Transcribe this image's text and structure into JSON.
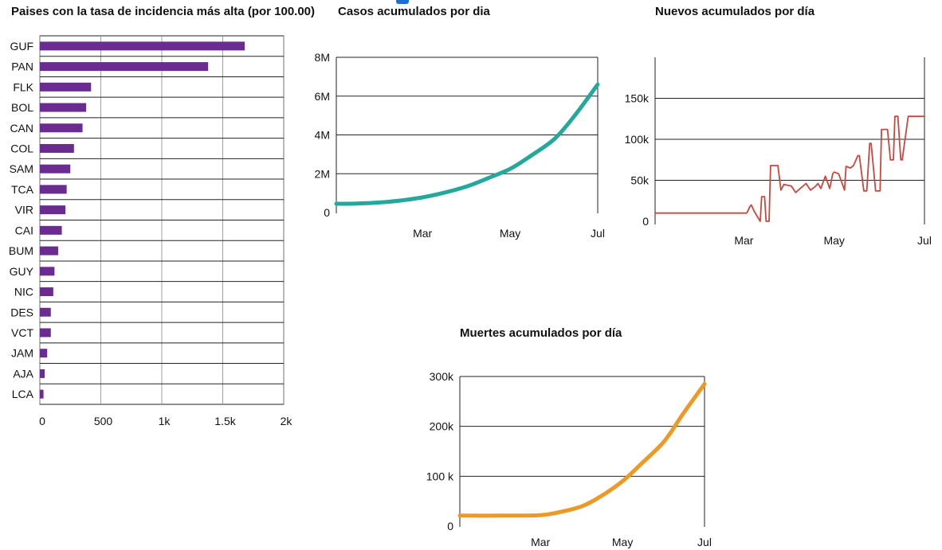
{
  "colors": {
    "bar": "#6b2c91",
    "cases_line": "#23a89b",
    "new_line": "#c9473f",
    "deaths_line": "#ec9a25",
    "grid": "#222222",
    "accent": "#1b6fd6"
  },
  "chart_data": [
    {
      "id": "incidence",
      "type": "bar",
      "orientation": "horizontal",
      "title": "Paises con la tasa de incidencia más alta (por 100.00)",
      "categories": [
        "GUF",
        "PAN",
        "FLK",
        "BOL",
        "CAN",
        "COL",
        "SAM",
        "TCA",
        "VIR",
        "CAI",
        "BUM",
        "GUY",
        "NIC",
        "DES",
        "VCT",
        "JAM",
        "AJA",
        "LCA"
      ],
      "values": [
        1680,
        1380,
        420,
        380,
        350,
        280,
        250,
        220,
        210,
        180,
        150,
        120,
        110,
        90,
        90,
        60,
        40,
        30
      ],
      "xlim": [
        0,
        2000
      ],
      "xticks": [
        {
          "value": 0,
          "label": "0"
        },
        {
          "value": 500,
          "label": "500"
        },
        {
          "value": 1000,
          "label": "1k"
        },
        {
          "value": 1500,
          "label": "1.5k"
        },
        {
          "value": 2000,
          "label": "2k"
        }
      ],
      "grid": "horizontal and vertical"
    },
    {
      "id": "cases",
      "type": "line",
      "title": "Casos acumulados por dia",
      "x": [
        "Ene 01",
        "Ene 15",
        "Feb 01",
        "Feb 15",
        "Mar 01",
        "Mar 15",
        "Abr 01",
        "Abr 15",
        "May 01",
        "May 15",
        "Jun 01",
        "Jun 15",
        "Jul 01"
      ],
      "y": [
        450000,
        460000,
        520000,
        620000,
        780000,
        1000000,
        1350000,
        1750000,
        2250000,
        2900000,
        3800000,
        5000000,
        6600000
      ],
      "ylim": [
        0,
        8000000
      ],
      "yticks": [
        {
          "value": 0,
          "label": "0"
        },
        {
          "value": 2000000,
          "label": "2M"
        },
        {
          "value": 4000000,
          "label": "4M"
        },
        {
          "value": 6000000,
          "label": "6M"
        },
        {
          "value": 8000000,
          "label": "8M"
        }
      ],
      "xticks": [
        {
          "value": "Mar 01",
          "label": "Mar"
        },
        {
          "value": "May 01",
          "label": "May"
        },
        {
          "value": "Jul 01",
          "label": "Jul"
        }
      ],
      "grid": "horizontal"
    },
    {
      "id": "new",
      "type": "line",
      "title": "Nuevos acumulados por día",
      "x": [
        "Ene 01",
        "Feb 01",
        "Feb 26",
        "Mar 03",
        "Mar 05",
        "Mar 06",
        "Mar 08",
        "Mar 12",
        "Mar 13",
        "Mar 15",
        "Mar 16",
        "Mar 18",
        "Mar 19",
        "Mar 24",
        "Mar 26",
        "Mar 28",
        "Abr 02",
        "Abr 05",
        "Abr 08",
        "Abr 12",
        "Abr 15",
        "Abr 18",
        "Abr 20",
        "Abr 22",
        "Abr 25",
        "Abr 28",
        "Abr 30",
        "May 01",
        "May 04",
        "May 08",
        "May 09",
        "May 12",
        "May 14",
        "May 17",
        "May 18",
        "May 21",
        "May 23",
        "May 25",
        "May 26",
        "May 29",
        "Jun 01",
        "Jun 02",
        "Jun 06",
        "Jun 08",
        "Jun 10",
        "Jun 11",
        "Jun 13",
        "Jun 15",
        "Jun 16",
        "Jun 20",
        "Jun 21",
        "Jun 23",
        "Jun 24",
        "Jun 27",
        "Jun 28",
        "Jul 01"
      ],
      "y": [
        10000,
        10000,
        10000,
        10000,
        18000,
        20000,
        12000,
        0,
        30000,
        30000,
        0,
        0,
        68000,
        68000,
        38000,
        45000,
        43000,
        35000,
        40000,
        46000,
        38000,
        42000,
        46000,
        40000,
        55000,
        40000,
        58000,
        60000,
        58000,
        38000,
        67000,
        65000,
        68000,
        80000,
        80000,
        37000,
        37000,
        95000,
        95000,
        37000,
        37000,
        112000,
        112000,
        75000,
        75000,
        128000,
        128000,
        75000,
        75000,
        128000,
        128000,
        128000,
        128000,
        128000,
        128000,
        128000
      ],
      "ylim": [
        0,
        200000
      ],
      "yticks": [
        {
          "value": 0,
          "label": "0"
        },
        {
          "value": 50000,
          "label": "50k"
        },
        {
          "value": 100000,
          "label": "100k"
        },
        {
          "value": 150000,
          "label": "150k"
        }
      ],
      "xticks": [
        {
          "value": "Mar 01",
          "label": "Mar"
        },
        {
          "value": "May 01",
          "label": "May"
        },
        {
          "value": "Jul 01",
          "label": "Jul"
        }
      ],
      "grid": "horizontal"
    },
    {
      "id": "deaths",
      "type": "line",
      "title": "Muertes acumulados por día",
      "x": [
        "Ene 01",
        "Feb 01",
        "Mar 01",
        "Mar 15",
        "Abr 01",
        "Abr 15",
        "May 01",
        "May 15",
        "Jun 01",
        "Jun 15",
        "Jul 01"
      ],
      "y": [
        21000,
        21000,
        22000,
        28000,
        40000,
        60000,
        90000,
        125000,
        170000,
        225000,
        285000
      ],
      "ylim": [
        0,
        300000
      ],
      "yticks": [
        {
          "value": 0,
          "label": "0"
        },
        {
          "value": 100000,
          "label": "100 k"
        },
        {
          "value": 200000,
          "label": "200k"
        },
        {
          "value": 300000,
          "label": "300k"
        }
      ],
      "xticks": [
        {
          "value": "Mar 01",
          "label": "Mar"
        },
        {
          "value": "May 01",
          "label": "May"
        },
        {
          "value": "Jul 01",
          "label": "Jul"
        }
      ],
      "grid": "horizontal"
    }
  ]
}
